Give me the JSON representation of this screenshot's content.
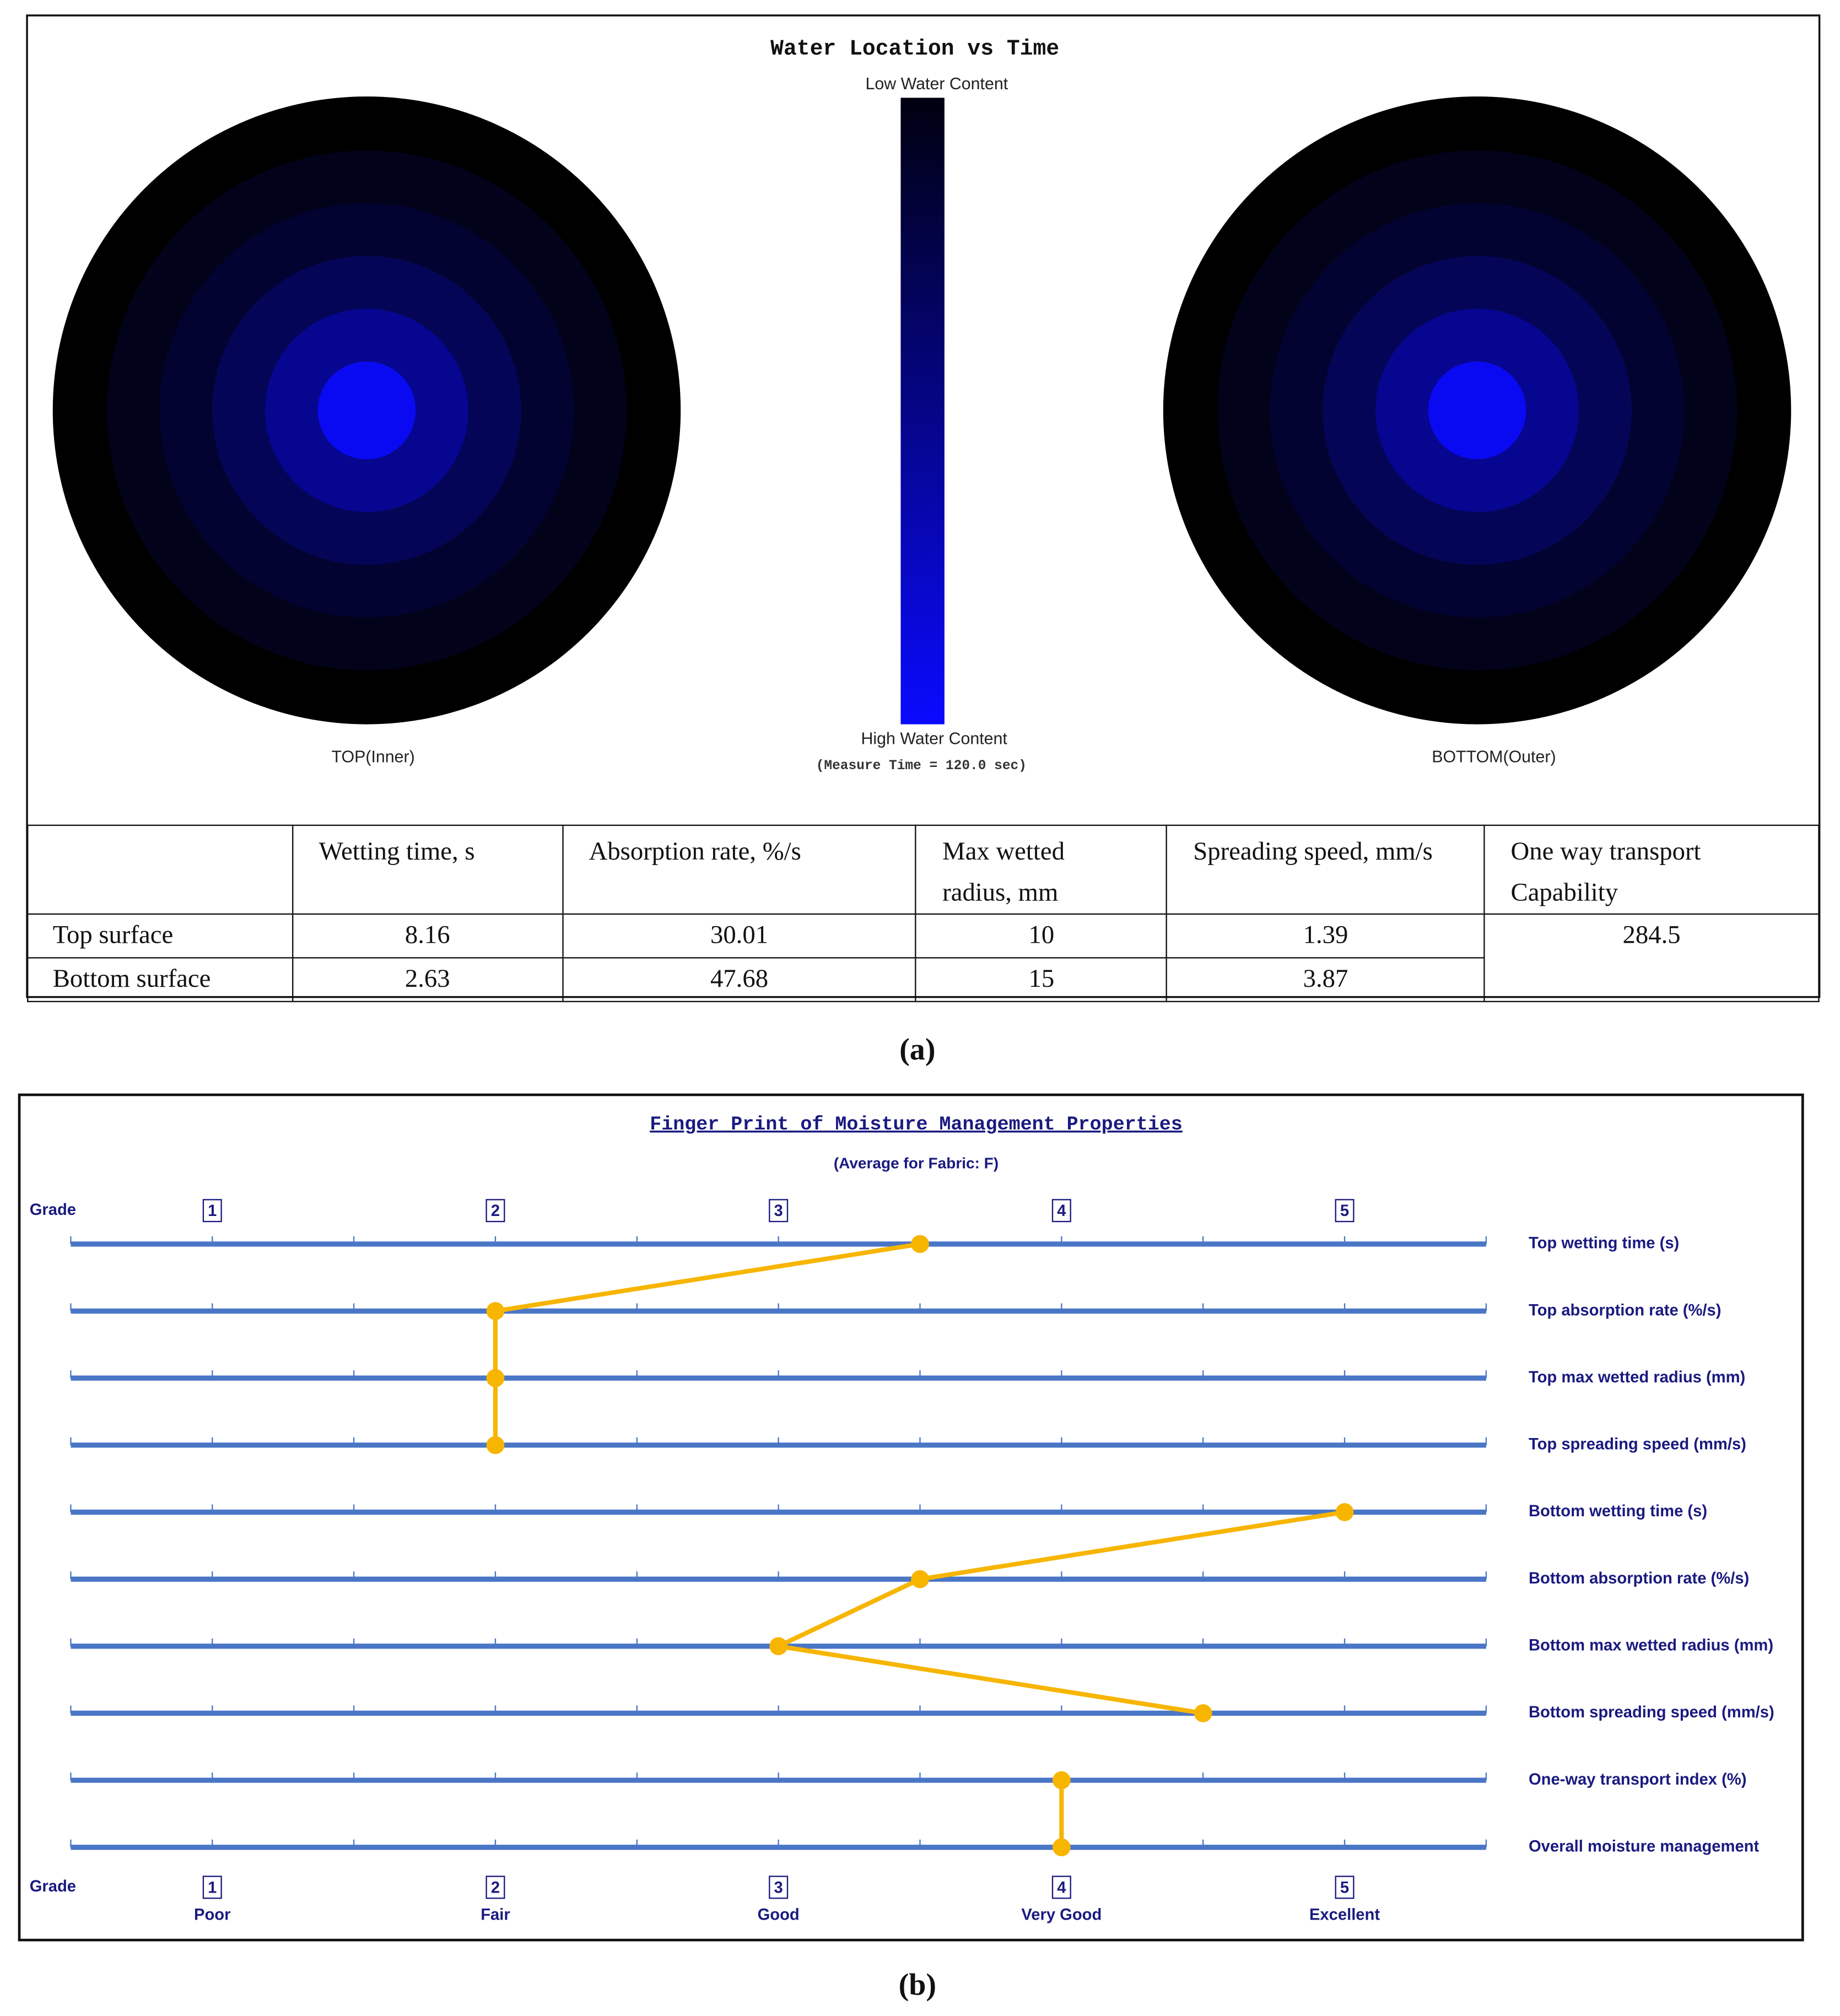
{
  "panel_a": {
    "title": "Water Location vs Time",
    "scale_top": "Low Water Content",
    "scale_bottom": "High Water Content",
    "measure_note": "(Measure Time = 120.0 sec)",
    "left_label": "TOP(Inner)",
    "right_label": "BOTTOM(Outer)",
    "table": {
      "headers": [
        "Wetting time, s",
        "Absorption rate, %/s",
        "Max wetted radius, mm",
        "Spreading speed, mm/s",
        "One way transport Capability"
      ],
      "rows": [
        [
          "Top surface",
          8.16,
          30.01,
          10,
          1.39
        ],
        [
          "Bottom surface",
          2.63,
          47.68,
          15,
          3.87
        ]
      ],
      "one_way": 284.5
    },
    "caption": "(a)"
  },
  "chart_data": {
    "type": "line",
    "title": "Finger Print of Moisture Management Properties",
    "subtitle": "(Average for Fabric: F)",
    "axis_label": "Grade",
    "categories": [
      "Top wetting time (s)",
      "Top absorption rate (%/s)",
      "Top max wetted radius (mm)",
      "Top spreading speed (mm/s)",
      "Bottom wetting time (s)",
      "Bottom absorption rate (%/s)",
      "Bottom max wetted radius (mm)",
      "Bottom spreading speed (mm/s)",
      "One-way transport index (%)",
      "Overall moisture management"
    ],
    "values": [
      3.5,
      2,
      2,
      2,
      5,
      3.5,
      3,
      4.5,
      4,
      4
    ],
    "xlim": [
      0.5,
      5.5
    ],
    "xticks": [
      1,
      2,
      3,
      4,
      5
    ],
    "xminorticks": [
      0.5,
      1,
      1.5,
      2,
      2.5,
      3,
      3.5,
      4,
      4.5,
      5,
      5.5
    ],
    "grade_labels": [
      "Poor",
      "Fair",
      "Good",
      "Very Good",
      "Excellent"
    ],
    "color": "#f7b500",
    "axis_color": "#4a76c6",
    "caption": "(b)"
  }
}
